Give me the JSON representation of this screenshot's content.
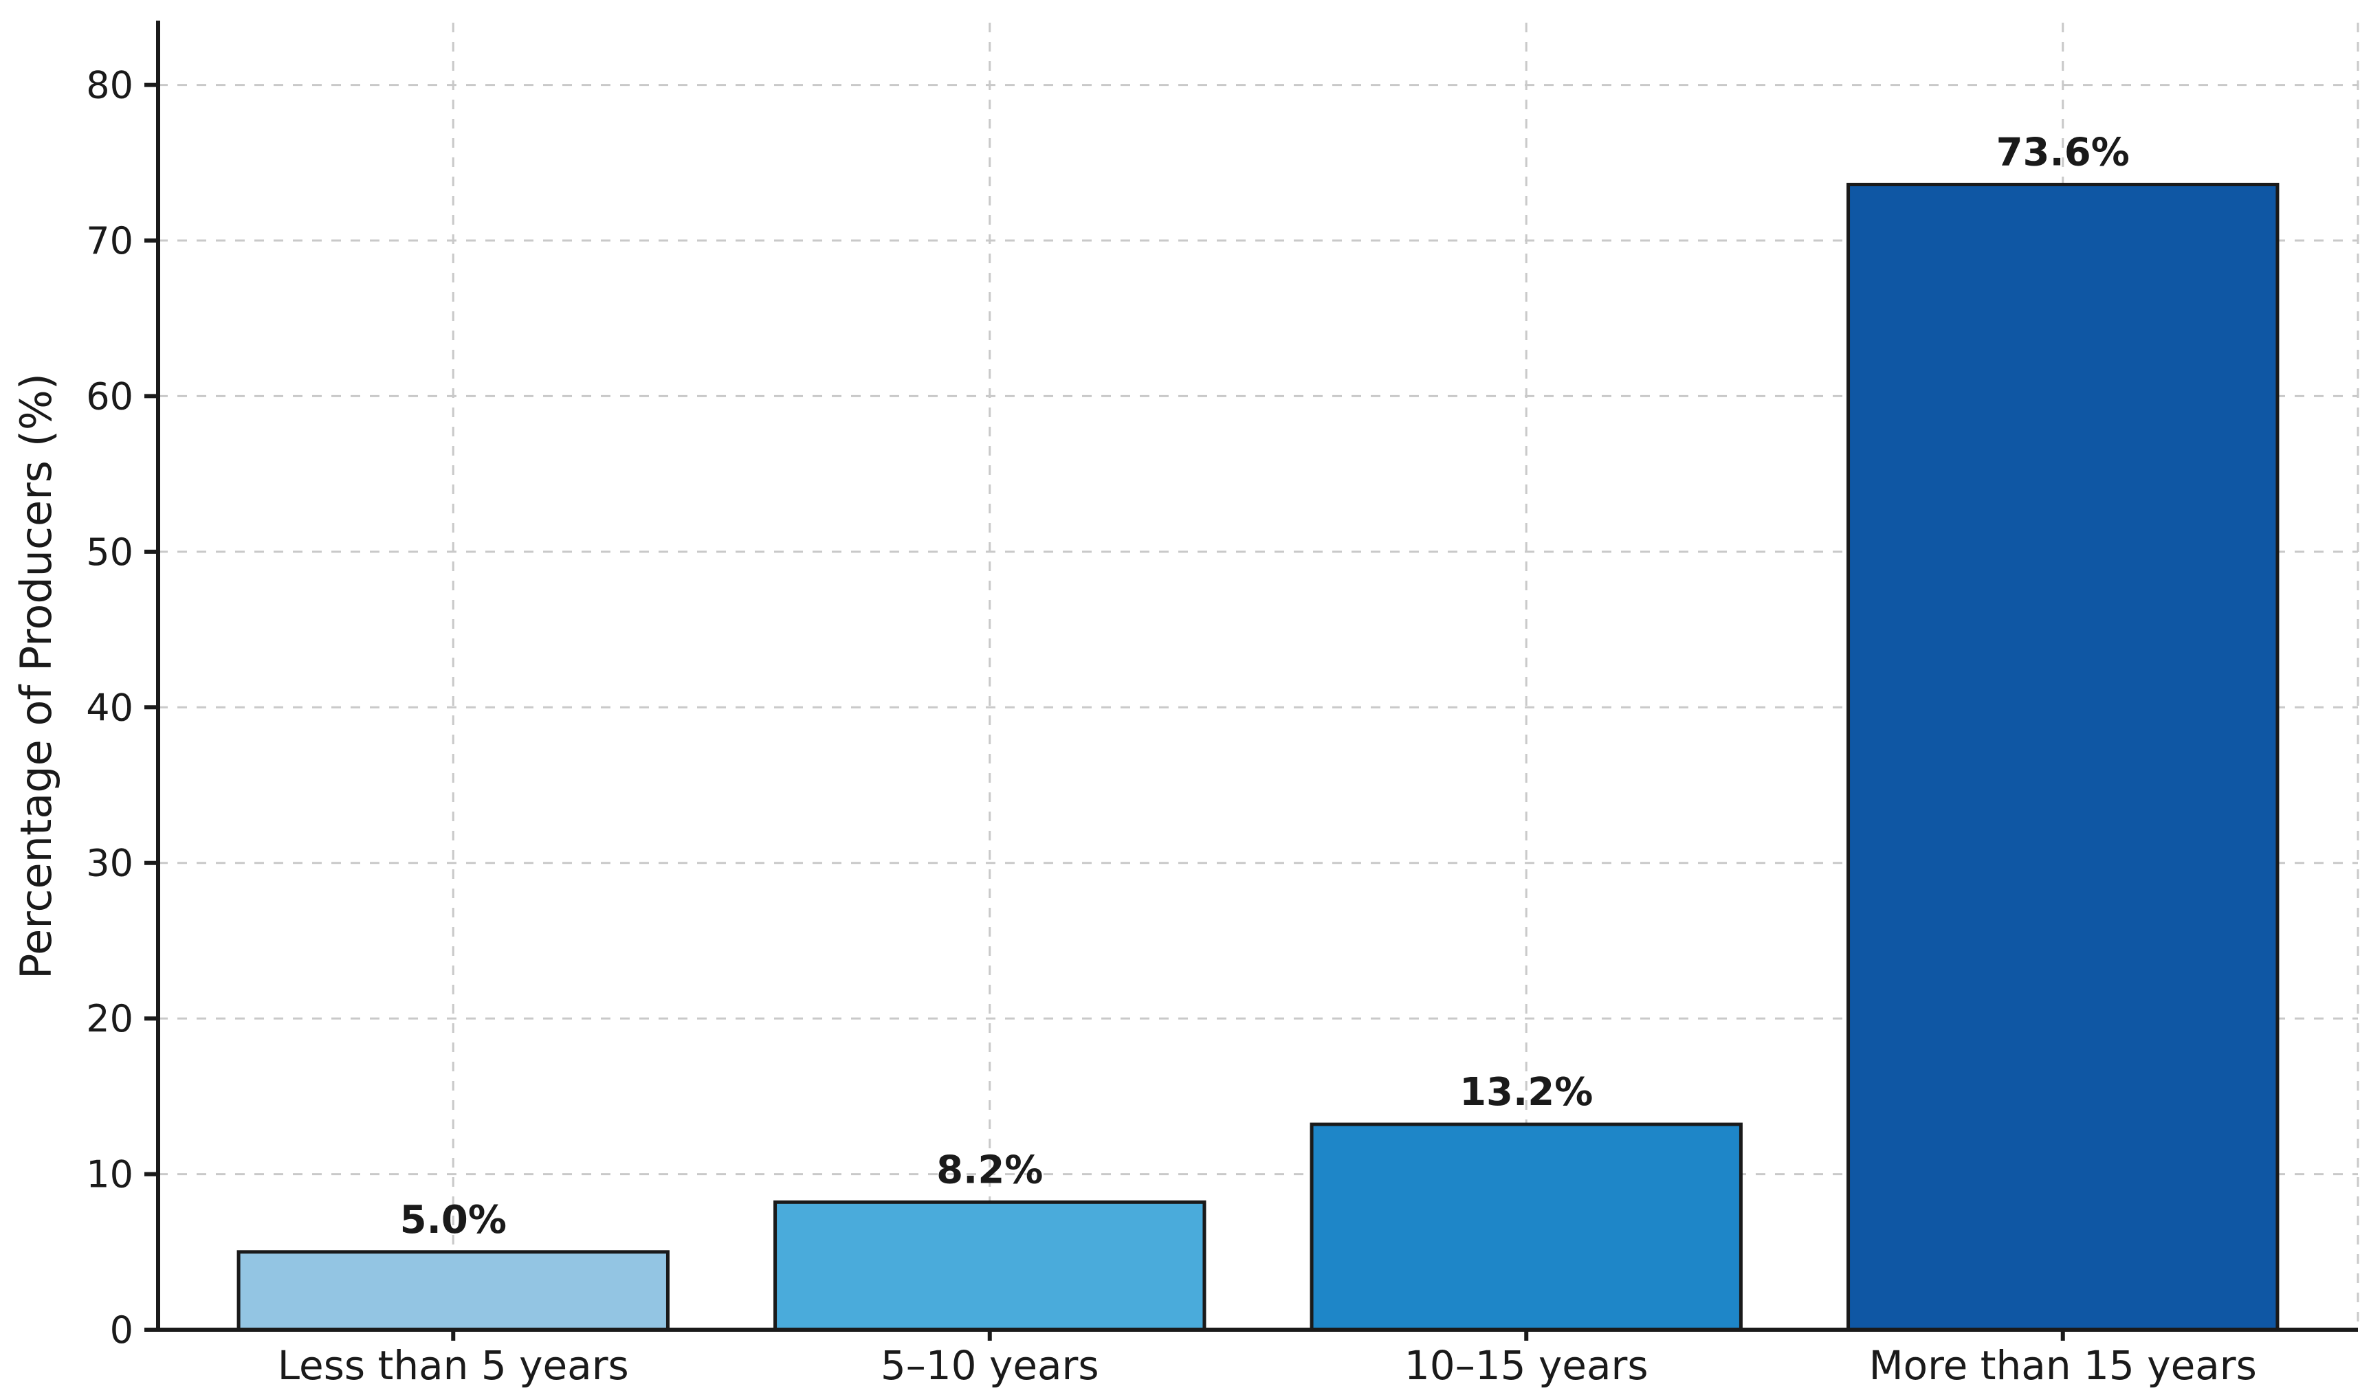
{
  "chart_data": {
    "type": "bar",
    "title": "",
    "xlabel": "",
    "ylabel": "Percentage of Producers (%)",
    "categories": [
      "Less than 5 years",
      "5–10 years",
      "10–15 years",
      "More than 15 years"
    ],
    "values": [
      5.0,
      8.2,
      13.2,
      73.6
    ],
    "value_labels": [
      "5.0%",
      "8.2%",
      "13.2%",
      "73.6%"
    ],
    "ylim": [
      0,
      84
    ],
    "yticks": [
      0,
      10,
      20,
      30,
      40,
      50,
      60,
      70,
      80
    ],
    "ytick_labels": [
      "0",
      "10",
      "20",
      "30",
      "40",
      "50",
      "60",
      "70",
      "80"
    ],
    "grid": true,
    "grid_style": "dashed",
    "legend": "none",
    "bar_colors": [
      "#93c5e3",
      "#4aabdb",
      "#1e86c8",
      "#0f57a4"
    ],
    "bar_edge_color": "#1a1a1a",
    "grid_color": "#c9c9c9",
    "axis_color": "#1a1a1a",
    "text_color": "#1a1a1a"
  }
}
